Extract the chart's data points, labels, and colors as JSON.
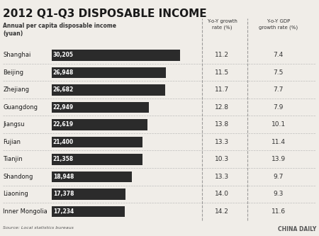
{
  "title": "2012 Q1-Q3 DISPOSABLE INCOME",
  "subtitle_left": "Annual per capita disposable income\n(yuan)",
  "col_header1": "Y-o-Y growth\nrate (%)",
  "col_header2": "Y-o-Y GDP\ngrowth rate (%)",
  "regions": [
    "Shanghai",
    "Beijing",
    "Zhejiang",
    "Guangdong",
    "Jiangsu",
    "Fujian",
    "Tianjin",
    "Shandong",
    "Liaoning",
    "Inner Mongolia"
  ],
  "values": [
    30205,
    26948,
    26682,
    22949,
    22619,
    21400,
    21358,
    18948,
    17378,
    17234
  ],
  "yoy_growth": [
    11.2,
    11.5,
    11.7,
    12.8,
    13.8,
    13.3,
    10.3,
    13.3,
    14.0,
    14.2
  ],
  "gdp_growth": [
    7.4,
    7.5,
    7.7,
    7.9,
    10.1,
    11.4,
    13.9,
    9.7,
    9.3,
    11.6
  ],
  "bar_color": "#2b2b2b",
  "bar_text_color": "#ffffff",
  "bg_color": "#f0ede8",
  "title_color": "#1a1a1a",
  "source_text": "Source: Local statistics bureaus",
  "credit_text": "CHINA DAILY",
  "max_value": 30205
}
